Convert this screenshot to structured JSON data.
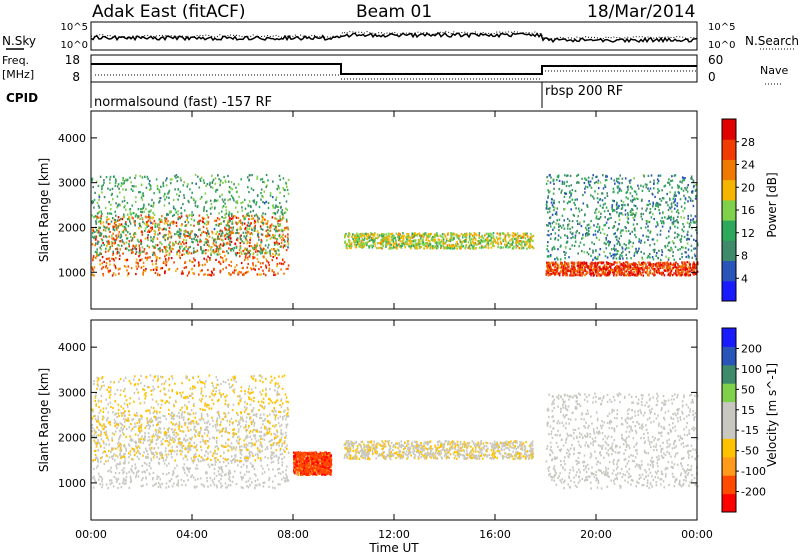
{
  "header": {
    "station": "Adak East (fitACF)",
    "beam": "Beam 01",
    "date": "18/Mar/2014"
  },
  "panels": {
    "nsky_label": "N.Sky",
    "nsearch_label": "N.Search",
    "freq_label_line1": "Freq.",
    "freq_label_line2": "[MHz]",
    "nave_label": "Nave",
    "cpid_label": "CPID",
    "cpid_segments": [
      "normalsound (fast) -157 RF",
      "rbsp 200 RF"
    ],
    "noise_ticks_left": [
      "10^5",
      "10^0"
    ],
    "noise_ticks_right": [
      "10^5",
      "10^0"
    ],
    "freq_ticks": [
      "18",
      "8"
    ],
    "nave_ticks": [
      "60",
      "0"
    ]
  },
  "colors": {
    "power_scale": [
      "#1a1aff",
      "#2a55b8",
      "#3e8a6a",
      "#2ea85a",
      "#7fd04a",
      "#f5b400",
      "#f07a00",
      "#f03c00",
      "#e00000"
    ],
    "velocity_scale": [
      "#ff0000",
      "#ff4a00",
      "#ff9a1a",
      "#ffc200",
      "#c8c8c0",
      "#c8c8c0",
      "#7fd04a",
      "#3e8a6a",
      "#2a55b8",
      "#1a1aff"
    ]
  },
  "chart_data": [
    {
      "type": "heatmap",
      "title": "",
      "xlabel": "Time UT",
      "ylabel": "Slant Range [km]",
      "xticks": [
        "00:00",
        "04:00",
        "08:00",
        "12:00",
        "16:00",
        "20:00",
        "00:00"
      ],
      "xlim_hours": [
        0,
        24
      ],
      "ylim": [
        180,
        4600
      ],
      "yticks": [
        "1000",
        "2000",
        "3000",
        "4000"
      ],
      "colorbar": {
        "label": "Power [dB]",
        "ticks": [
          "4",
          "8",
          "12",
          "16",
          "20",
          "24",
          "28"
        ],
        "range": [
          0,
          32
        ]
      },
      "echo_bands": [
        {
          "t_start": 0.0,
          "t_end": 7.8,
          "range_start": 950,
          "range_end": 2300,
          "value": 25
        },
        {
          "t_start": 0.0,
          "t_end": 7.8,
          "range_start": 1400,
          "range_end": 3200,
          "value": 12
        },
        {
          "t_start": 10.0,
          "t_end": 17.5,
          "range_start": 1550,
          "range_end": 1900,
          "value": 17
        },
        {
          "t_start": 18.0,
          "t_end": 24.0,
          "range_start": 950,
          "range_end": 1250,
          "value": 27
        },
        {
          "t_start": 18.0,
          "t_end": 24.0,
          "range_start": 1300,
          "range_end": 3200,
          "value": 10
        }
      ]
    },
    {
      "type": "heatmap",
      "title": "",
      "xlabel": "Time UT",
      "ylabel": "Slant Range [km]",
      "xticks": [
        "00:00",
        "04:00",
        "08:00",
        "12:00",
        "16:00",
        "20:00",
        "00:00"
      ],
      "xlim_hours": [
        0,
        24
      ],
      "ylim": [
        180,
        4600
      ],
      "yticks": [
        "1000",
        "2000",
        "3000",
        "4000"
      ],
      "colorbar": {
        "label": "Velocity [m s^-1]",
        "ticks": [
          "200",
          "100",
          "50",
          "15",
          "-15",
          "-50",
          "-100",
          "-200"
        ],
        "range": [
          -250,
          250
        ]
      },
      "echo_bands": [
        {
          "t_start": 0.0,
          "t_end": 7.8,
          "range_start": 900,
          "range_end": 2600,
          "value": 0
        },
        {
          "t_start": 0.0,
          "t_end": 7.8,
          "range_start": 1500,
          "range_end": 3400,
          "value": -60
        },
        {
          "t_start": 8.0,
          "t_end": 9.5,
          "range_start": 1200,
          "range_end": 1700,
          "value": -180
        },
        {
          "t_start": 10.0,
          "t_end": 17.5,
          "range_start": 1550,
          "range_end": 1950,
          "value": -40
        },
        {
          "t_start": 18.0,
          "t_end": 24.0,
          "range_start": 900,
          "range_end": 3000,
          "value": 0
        }
      ]
    }
  ]
}
